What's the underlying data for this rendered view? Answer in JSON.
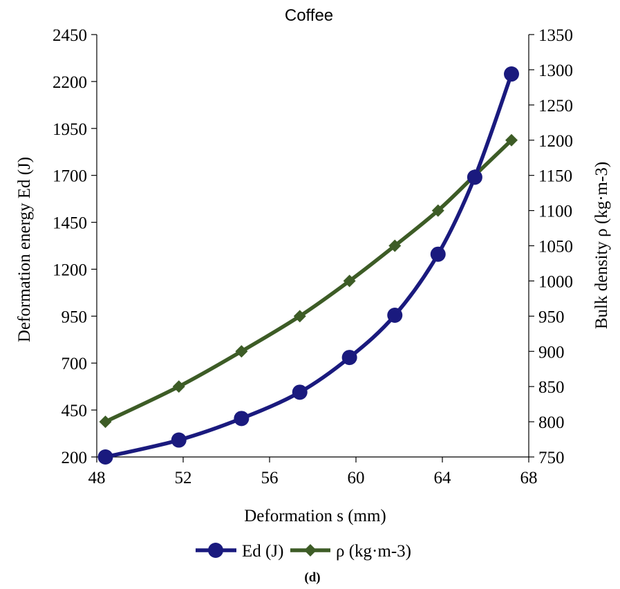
{
  "chart_data": {
    "type": "line",
    "title": "Coffee",
    "xlabel": "Deformation s (mm)",
    "ylabel_left": "Deformation energy Ed (J)",
    "ylabel_right": "Bulk density ρ (kg·m-3)",
    "xlim": [
      48,
      68
    ],
    "xticks": [
      48,
      52,
      56,
      60,
      64,
      68
    ],
    "ylim_left": [
      200,
      2450
    ],
    "yticks_left": [
      200,
      450,
      700,
      950,
      1200,
      1450,
      1700,
      1950,
      2200,
      2450
    ],
    "ylim_right": [
      750,
      1350
    ],
    "yticks_right": [
      750,
      800,
      850,
      900,
      950,
      1000,
      1050,
      1100,
      1150,
      1200,
      1250,
      1300,
      1350
    ],
    "series": [
      {
        "name": "Ed (J)",
        "axis": "left",
        "marker": "circle",
        "color": "#1a1a7e",
        "x": [
          48.4,
          51.8,
          54.7,
          57.4,
          59.7,
          61.8,
          63.8,
          65.5,
          67.2
        ],
        "y": [
          200,
          290,
          405,
          545,
          730,
          955,
          1280,
          1690,
          2240
        ]
      },
      {
        "name": "ρ  (kg·m-3)",
        "axis": "right",
        "marker": "diamond",
        "color": "#3d5c26",
        "x": [
          48.4,
          51.8,
          54.7,
          57.4,
          59.7,
          61.8,
          63.8,
          65.5,
          67.2
        ],
        "y": [
          800,
          850,
          900,
          950,
          1000,
          1050,
          1100,
          1150,
          1200
        ]
      }
    ],
    "legend_position": "bottom",
    "grid": false
  },
  "caption": "(d)"
}
